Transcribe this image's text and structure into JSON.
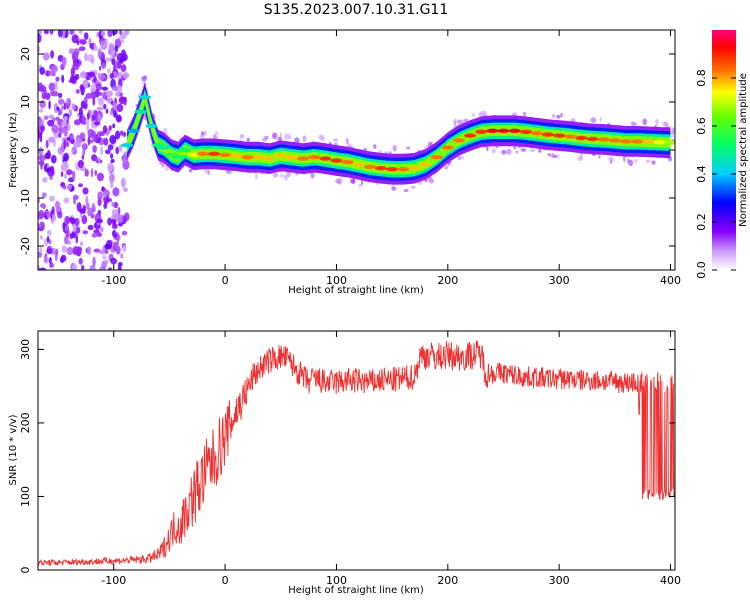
{
  "title": "S135.2023.007.10.31.G11",
  "chart_data": [
    {
      "type": "heatmap",
      "xlabel": "Height of straight line (km)",
      "ylabel": "Frequency (Hz)",
      "xlim": [
        -168,
        404
      ],
      "ylim": [
        -25,
        25
      ],
      "xticks": [
        -100,
        0,
        100,
        200,
        300,
        400
      ],
      "yticks": [
        -20,
        -10,
        0,
        10,
        20
      ],
      "colorbar": {
        "label": "Normalized spectral amplitude",
        "range": [
          0,
          1
        ],
        "ticks": [
          "0.0",
          "0.2",
          "0.4",
          "0.6",
          "0.8"
        ],
        "colors": [
          "#ffffff",
          "#9900ff",
          "#0000ff",
          "#00ffff",
          "#00ff00",
          "#ffff00",
          "#ff0000",
          "#ff0080"
        ]
      },
      "noise_region": {
        "x": [
          -168,
          -88
        ],
        "y": [
          -25,
          25
        ]
      },
      "ridge": {
        "x": [
          -88,
          -82,
          -76,
          -72,
          -66,
          -60,
          -55,
          -48,
          -42,
          -36,
          -28,
          -20,
          -10,
          0,
          10,
          20,
          30,
          40,
          50,
          60,
          70,
          80,
          90,
          100,
          110,
          120,
          130,
          140,
          150,
          160,
          170,
          180,
          190,
          200,
          210,
          220,
          230,
          240,
          250,
          260,
          270,
          280,
          290,
          300,
          310,
          320,
          330,
          340,
          350,
          360,
          370,
          380,
          390,
          400
        ],
        "y": [
          1,
          4,
          8,
          11,
          5,
          1,
          0.5,
          -1,
          -1.5,
          0,
          -1,
          -0.8,
          -0.8,
          -1,
          -1.2,
          -1.5,
          -1.5,
          -1.8,
          -1.2,
          -1.5,
          -1.8,
          -1.5,
          -1.8,
          -2.2,
          -2.5,
          -3,
          -3.5,
          -3.8,
          -4,
          -4,
          -3.8,
          -3,
          -1.5,
          0.5,
          2,
          3,
          3.8,
          4,
          4,
          4,
          3.8,
          3.5,
          3.2,
          3,
          2.8,
          2.5,
          2.3,
          2.2,
          2,
          1.8,
          1.8,
          1.7,
          1.6,
          1.5
        ],
        "amplitude": [
          0.45,
          0.4,
          0.5,
          0.45,
          0.45,
          0.55,
          0.5,
          0.6,
          0.55,
          0.55,
          0.75,
          0.85,
          0.9,
          0.85,
          0.8,
          0.85,
          0.8,
          0.8,
          0.8,
          0.8,
          0.85,
          0.85,
          0.9,
          0.9,
          0.85,
          0.8,
          0.85,
          0.9,
          0.9,
          0.85,
          0.8,
          0.8,
          0.85,
          0.85,
          0.85,
          0.9,
          0.9,
          0.95,
          0.95,
          0.95,
          0.9,
          0.85,
          0.9,
          0.9,
          0.85,
          0.9,
          0.9,
          0.85,
          0.85,
          0.85,
          0.85,
          0.8,
          0.75,
          0.7
        ]
      }
    },
    {
      "type": "line",
      "xlabel": "Height of straight line (km)",
      "ylabel": "SNR (10 * v/v)",
      "xlim": [
        -168,
        404
      ],
      "ylim": [
        0,
        325
      ],
      "xticks": [
        -100,
        0,
        100,
        200,
        300,
        400
      ],
      "yticks": [
        0,
        100,
        200,
        300
      ],
      "series": [
        {
          "color": "#f03030",
          "x": [
            -168,
            -150,
            -130,
            -110,
            -90,
            -70,
            -60,
            -55,
            -50,
            -45,
            -40,
            -35,
            -30,
            -25,
            -20,
            -15,
            -10,
            -5,
            0,
            5,
            10,
            15,
            20,
            25,
            30,
            35,
            40,
            45,
            50,
            55,
            60,
            65,
            70,
            75,
            80,
            90,
            100,
            110,
            120,
            130,
            140,
            150,
            160,
            170,
            175,
            180,
            190,
            200,
            210,
            220,
            230,
            235,
            240,
            250,
            260,
            270,
            280,
            290,
            300,
            310,
            320,
            330,
            340,
            350,
            360,
            370,
            375,
            380,
            390,
            400,
            404
          ],
          "y": [
            10,
            10,
            11,
            12,
            13,
            15,
            20,
            30,
            45,
            60,
            60,
            80,
            95,
            110,
            125,
            140,
            150,
            165,
            180,
            200,
            215,
            230,
            245,
            262,
            272,
            280,
            285,
            288,
            290,
            288,
            280,
            270,
            262,
            255,
            260,
            255,
            255,
            258,
            257,
            255,
            258,
            258,
            260,
            263,
            290,
            292,
            290,
            292,
            290,
            292,
            294,
            265,
            268,
            268,
            265,
            262,
            262,
            260,
            260,
            260,
            258,
            258,
            257,
            256,
            255,
            255,
            180,
            180,
            180,
            180,
            180
          ],
          "band": [
            4,
            4,
            4,
            5,
            5,
            6,
            10,
            15,
            20,
            25,
            30,
            35,
            40,
            45,
            45,
            45,
            45,
            45,
            40,
            35,
            30,
            25,
            22,
            20,
            18,
            18,
            18,
            18,
            18,
            18,
            18,
            18,
            18,
            18,
            18,
            18,
            18,
            18,
            18,
            18,
            18,
            18,
            18,
            18,
            20,
            20,
            20,
            20,
            20,
            20,
            20,
            20,
            15,
            15,
            15,
            15,
            15,
            15,
            15,
            15,
            15,
            15,
            15,
            15,
            15,
            15,
            80,
            80,
            80,
            80,
            80
          ]
        }
      ]
    }
  ]
}
